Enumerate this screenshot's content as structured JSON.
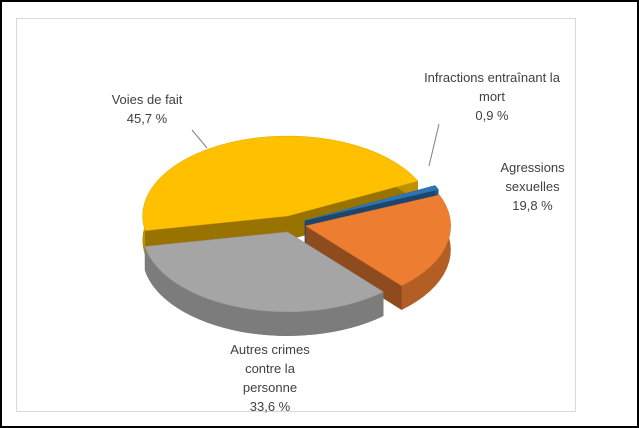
{
  "chart_data": {
    "type": "pie",
    "categories": [
      "Voies de fait",
      "Infractions entraînant la mort",
      "Agressions sexuelles",
      "Autres crimes contre la personne"
    ],
    "values": [
      45.7,
      0.9,
      19.8,
      33.6
    ],
    "value_labels": [
      "45,7 %",
      "0,9 %",
      "19,8 %",
      "33,6 %"
    ],
    "colors": [
      "#ffc000",
      "#2e75b6",
      "#ed7d31",
      "#a5a5a5"
    ]
  }
}
